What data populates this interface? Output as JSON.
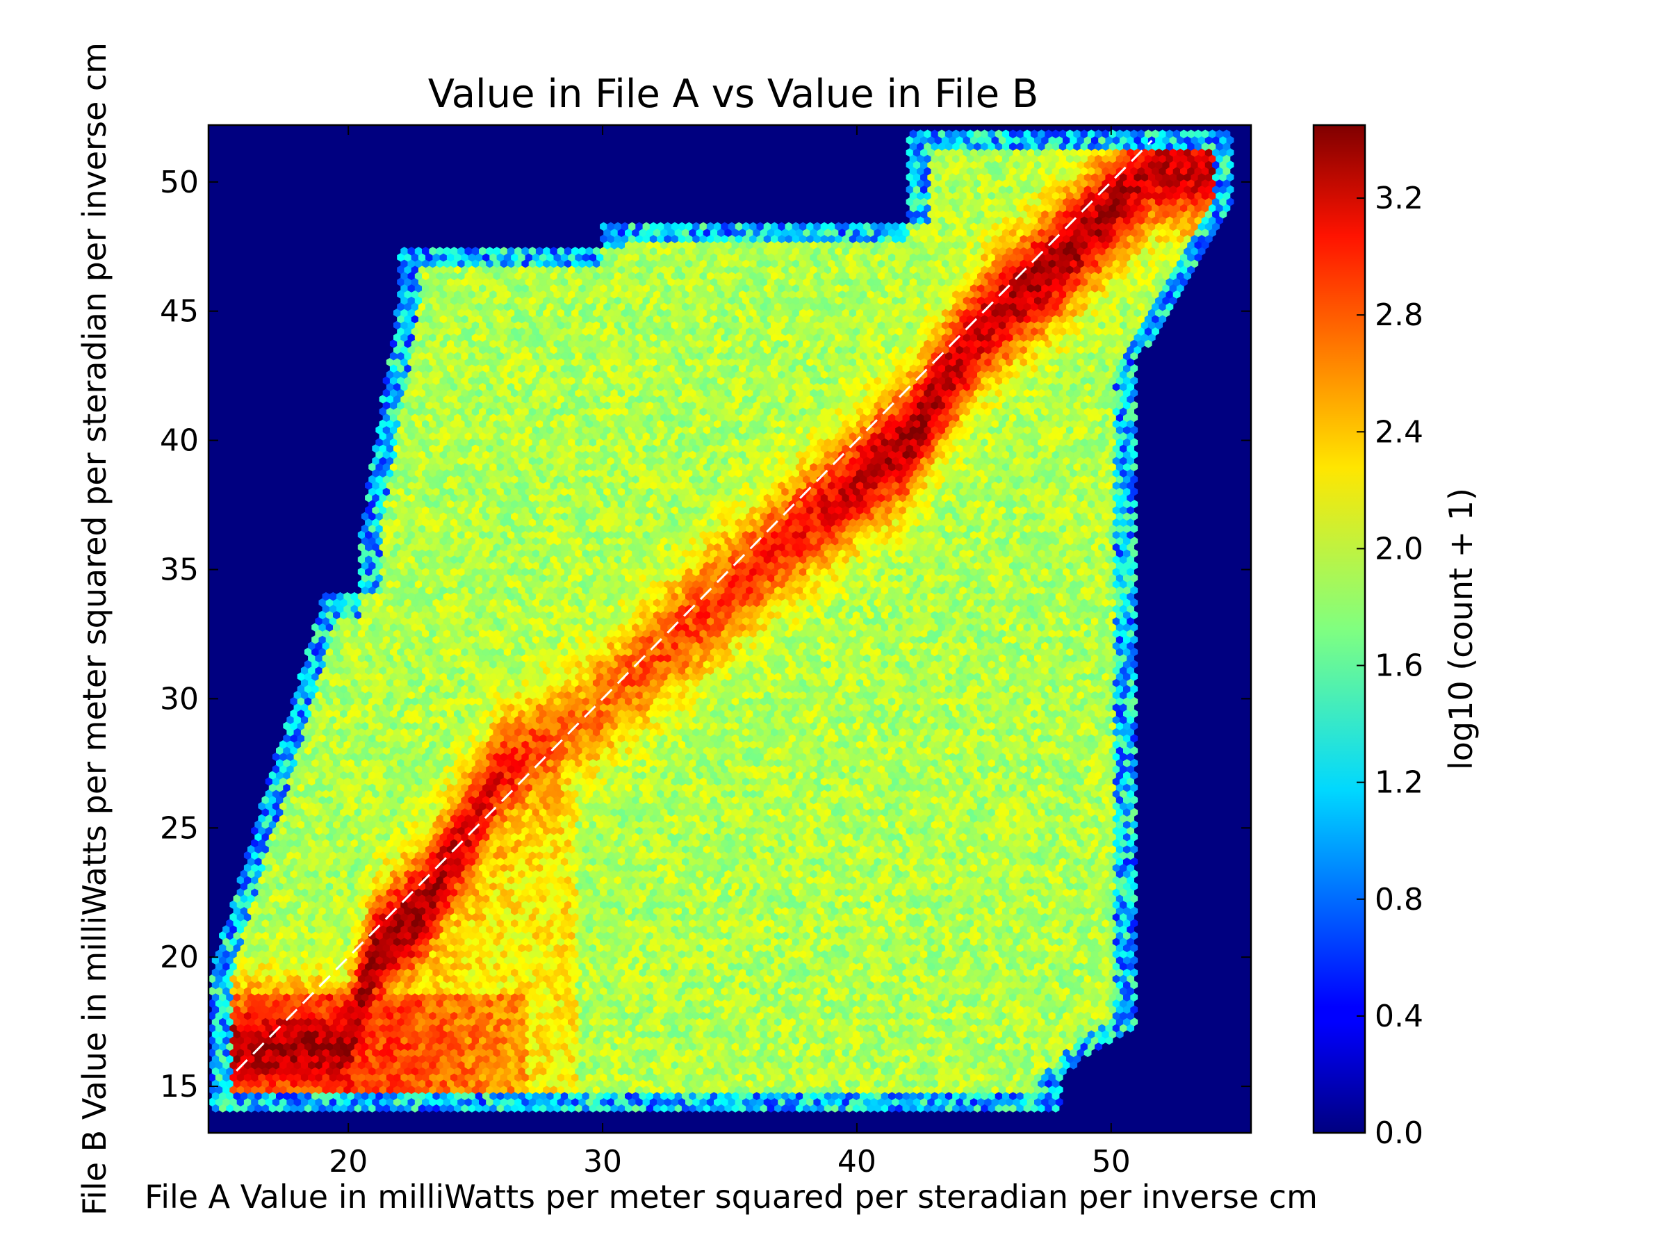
{
  "chart_data": {
    "type": "heatmap",
    "subtype": "hexbin",
    "title": "Value in File A vs Value in File B",
    "xlabel": "File A Value in milliWatts per meter squared per steradian per inverse cm",
    "ylabel": "File B Value in milliWatts per meter squared per steradian per inverse cm",
    "xlim": [
      14.5,
      55.5
    ],
    "ylim": [
      13.2,
      52.2
    ],
    "xticks": [
      20,
      30,
      40,
      50
    ],
    "yticks": [
      15,
      20,
      25,
      30,
      35,
      40,
      45,
      50
    ],
    "reference_line": {
      "from": [
        15.6,
        15.6
      ],
      "to": [
        51.6,
        51.6
      ],
      "style": "dashed",
      "color": "#ffffff"
    },
    "colorbar": {
      "label": "log10 (count + 1)",
      "range": [
        0.0,
        3.45
      ],
      "ticks": [
        "0.0",
        "0.4",
        "0.8",
        "1.2",
        "1.6",
        "2.0",
        "2.4",
        "2.8",
        "3.2"
      ],
      "colormap": "jet"
    },
    "background_color": "#000080",
    "density_description": {
      "ridge_along_diagonal": [
        {
          "x": 20,
          "y": 16.5,
          "value": 3.3
        },
        {
          "x": 21,
          "y": 20,
          "value": 3.4
        },
        {
          "x": 23,
          "y": 22,
          "value": 3.35
        },
        {
          "x": 26,
          "y": 27,
          "value": 3.0
        },
        {
          "x": 29,
          "y": 29,
          "value": 2.6
        },
        {
          "x": 33,
          "y": 32.5,
          "value": 2.8
        },
        {
          "x": 37,
          "y": 36,
          "value": 2.9
        },
        {
          "x": 42,
          "y": 40,
          "value": 3.35
        },
        {
          "x": 45,
          "y": 44.5,
          "value": 3.2
        },
        {
          "x": 48,
          "y": 47,
          "value": 3.35
        },
        {
          "x": 51.5,
          "y": 50.5,
          "value": 3.2
        }
      ],
      "background_level": 1.9
    }
  }
}
